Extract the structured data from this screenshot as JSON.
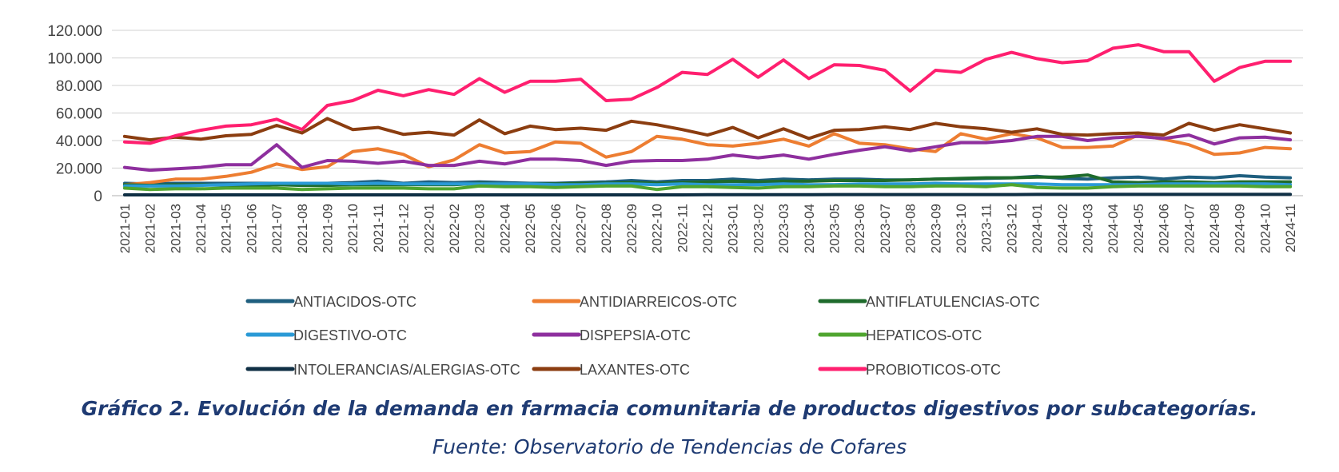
{
  "chart_data": {
    "type": "line",
    "ylim": [
      0,
      120000
    ],
    "y_ticks": [
      0,
      20000,
      40000,
      60000,
      80000,
      100000,
      120000
    ],
    "y_tick_labels": [
      "0",
      "20.000",
      "40.000",
      "60.000",
      "80.000",
      "100.000",
      "120.000"
    ],
    "grid": "horizontal",
    "legend_position": "bottom",
    "x": [
      "2021-01",
      "2021-02",
      "2021-03",
      "2021-04",
      "2021-05",
      "2021-06",
      "2021-07",
      "2021-08",
      "2021-09",
      "2021-10",
      "2021-11",
      "2021-12",
      "2022-01",
      "2022-02",
      "2022-03",
      "2022-04",
      "2022-05",
      "2022-06",
      "2022-07",
      "2022-08",
      "2022-09",
      "2022-10",
      "2022-11",
      "2022-12",
      "2023-01",
      "2023-02",
      "2023-03",
      "2023-04",
      "2023-05",
      "2023-06",
      "2023-07",
      "2023-08",
      "2023-09",
      "2023-10",
      "2023-11",
      "2023-12",
      "2024-01",
      "2024-02",
      "2024-03",
      "2024-04",
      "2024-05",
      "2024-06",
      "2024-07",
      "2024-08",
      "2024-09",
      "2024-10",
      "2024-11"
    ],
    "series": [
      {
        "name": "ANTIACIDOS-OTC",
        "color": "#1f5f7f",
        "values": [
          9000,
          8500,
          9000,
          9000,
          9000,
          9000,
          9000,
          8500,
          9000,
          9500,
          10500,
          9000,
          10000,
          9500,
          10000,
          9500,
          9000,
          9000,
          9500,
          10000,
          11000,
          10000,
          11000,
          11000,
          12000,
          11000,
          12000,
          11500,
          12000,
          12000,
          11500,
          11500,
          12000,
          12000,
          12500,
          13000,
          14000,
          12500,
          12000,
          13000,
          13500,
          12000,
          13500,
          13000,
          14500,
          13500,
          13000
        ]
      },
      {
        "name": "ANTIDIARREICOS-OTC",
        "color": "#ed7d31",
        "values": [
          8000,
          9500,
          12000,
          12000,
          14000,
          17000,
          23000,
          19000,
          21000,
          32000,
          34000,
          30000,
          21000,
          26000,
          37000,
          31000,
          32000,
          39000,
          38000,
          28000,
          32000,
          43000,
          41000,
          37000,
          36000,
          38000,
          41000,
          36000,
          45000,
          38000,
          37000,
          34000,
          32000,
          45000,
          41000,
          45000,
          42000,
          35000,
          35000,
          36000,
          44000,
          41000,
          37000,
          30000,
          31000,
          35000,
          34000
        ]
      },
      {
        "name": "ANTIFLATULENCIAS-OTC",
        "color": "#1e6b2c",
        "values": [
          8000,
          7500,
          8000,
          8000,
          7500,
          7500,
          8000,
          7500,
          7500,
          8000,
          8000,
          8000,
          8000,
          8000,
          9000,
          8500,
          8500,
          8500,
          9000,
          9000,
          9500,
          9000,
          9500,
          10000,
          10500,
          10000,
          10500,
          10500,
          11000,
          11000,
          11000,
          11500,
          12000,
          12500,
          13000,
          13000,
          13500,
          13500,
          15000,
          10000,
          9500,
          10000,
          10000,
          9500,
          10000,
          10000,
          10000
        ]
      },
      {
        "name": "DIGESTIVO-OTC",
        "color": "#2a9ad6",
        "values": [
          7000,
          7000,
          7000,
          7500,
          8000,
          8500,
          9000,
          9000,
          9000,
          8500,
          9000,
          8500,
          8500,
          8500,
          8500,
          8500,
          8500,
          8000,
          8000,
          8500,
          8500,
          8000,
          8500,
          8000,
          8000,
          8000,
          8500,
          8000,
          8000,
          8500,
          8500,
          8500,
          9000,
          8500,
          8500,
          8500,
          8500,
          8000,
          8000,
          8000,
          8000,
          8500,
          8500,
          8500,
          8500,
          8500,
          8000
        ]
      },
      {
        "name": "DISPEPSIA-OTC",
        "color": "#8e2f9e",
        "values": [
          20500,
          18500,
          19500,
          20500,
          22500,
          22500,
          37000,
          20500,
          25500,
          25000,
          23500,
          25000,
          22000,
          22000,
          25000,
          23000,
          26500,
          26500,
          25500,
          22000,
          25000,
          25500,
          25500,
          26500,
          29500,
          27500,
          29500,
          26500,
          30000,
          33000,
          35500,
          32500,
          35500,
          38500,
          38500,
          40000,
          43000,
          43000,
          40000,
          42000,
          43000,
          41500,
          44000,
          37500,
          42000,
          42500,
          40500
        ]
      },
      {
        "name": "HEPATICOS-OTC",
        "color": "#4fa52f",
        "values": [
          5500,
          4500,
          5000,
          5000,
          5500,
          5500,
          5500,
          4500,
          5000,
          5500,
          5500,
          5500,
          5000,
          5000,
          7000,
          6500,
          6500,
          6000,
          6500,
          7000,
          7000,
          4500,
          6500,
          6500,
          6000,
          5500,
          6500,
          6500,
          7000,
          7000,
          6500,
          6500,
          7000,
          7000,
          6500,
          8000,
          6000,
          5500,
          5500,
          6500,
          7000,
          7000,
          7000,
          7000,
          7000,
          6500,
          6500
        ]
      },
      {
        "name": "INTOLERANCIAS/ALERGIAS-OTC",
        "color": "#0f2f44",
        "values": [
          600,
          600,
          600,
          600,
          600,
          600,
          600,
          600,
          600,
          600,
          600,
          600,
          600,
          600,
          600,
          600,
          600,
          600,
          600,
          600,
          600,
          600,
          600,
          700,
          700,
          700,
          700,
          700,
          800,
          800,
          800,
          800,
          800,
          800,
          800,
          800,
          900,
          900,
          900,
          900,
          900,
          900,
          900,
          900,
          900,
          900,
          900
        ]
      },
      {
        "name": "LAXANTES-OTC",
        "color": "#8b3d10",
        "values": [
          43000,
          40500,
          42500,
          41000,
          43500,
          44500,
          51000,
          45500,
          56000,
          48000,
          49500,
          44500,
          46000,
          44000,
          55000,
          45000,
          50500,
          48000,
          49000,
          47500,
          54000,
          51500,
          48000,
          44000,
          49500,
          42000,
          48500,
          41500,
          47500,
          48000,
          50000,
          48000,
          52500,
          50000,
          48500,
          46000,
          48500,
          44500,
          44000,
          45000,
          45500,
          44000,
          52500,
          47500,
          51500,
          48500,
          45500
        ]
      },
      {
        "name": "PROBIOTICOS-OTC",
        "color": "#ff1f6f",
        "values": [
          39000,
          38000,
          43500,
          47500,
          50500,
          51500,
          55500,
          48000,
          65500,
          69000,
          76500,
          72500,
          77000,
          73500,
          85000,
          75000,
          83000,
          83000,
          84500,
          69000,
          70000,
          78500,
          89500,
          88000,
          99000,
          86000,
          98500,
          85000,
          95000,
          94500,
          91000,
          76000,
          91000,
          89500,
          99000,
          104000,
          99500,
          96500,
          98000,
          107000,
          109500,
          104500,
          104500,
          83000,
          93000,
          97500,
          97500
        ]
      }
    ],
    "title": "Gráfico 2.  Evolución de la demanda en farmacia comunitaria de productos digestivos por subcategorías.",
    "source": "Fuente: Observatorio de Tendencias de Cofares"
  }
}
